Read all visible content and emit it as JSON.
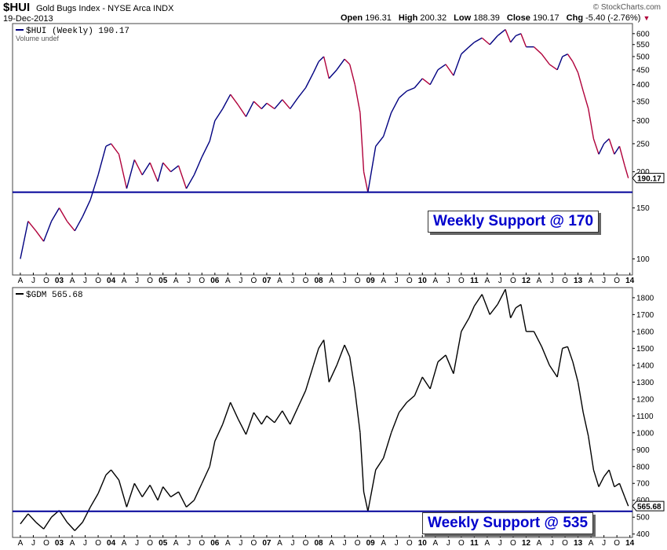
{
  "header": {
    "ticker": "$HUI",
    "index_name": "Gold Bugs Index - NYSE Arca  INDX",
    "date": "19-Dec-2013",
    "open_label": "Open",
    "open": "196.31",
    "high_label": "High",
    "high": "200.32",
    "low_label": "Low",
    "low": "188.39",
    "close_label": "Close",
    "close": "190.17",
    "chg_label": "Chg",
    "chg": "-5.40 (-2.76%)",
    "credit": "© StockCharts.com"
  },
  "colors": {
    "hui_up": "#000080",
    "hui_down": "#b0003a",
    "gdm": "#000000",
    "support": "#000099",
    "box_text": "#0000cc"
  },
  "chart_data": [
    {
      "type": "line",
      "legend": "$HUI (Weekly) 190.17",
      "volume_note": "Volume undef",
      "scale": "log",
      "ylim": [
        88,
        650
      ],
      "y_ticks": [
        "600",
        "550",
        "500",
        "450",
        "400",
        "350",
        "300",
        "250",
        "200",
        "150",
        "100"
      ],
      "last_value_label": "190.17",
      "last_value": 190.17,
      "support_value": 170,
      "annotation": "Weekly Support @ 170",
      "x_labels": [
        "A",
        "J",
        "O",
        "03",
        "A",
        "J",
        "O",
        "04",
        "A",
        "J",
        "O",
        "05",
        "A",
        "J",
        "O",
        "06",
        "A",
        "J",
        "O",
        "07",
        "A",
        "J",
        "O",
        "08",
        "A",
        "J",
        "O",
        "09",
        "A",
        "J",
        "O",
        "10",
        "A",
        "J",
        "O",
        "11",
        "A",
        "J",
        "O",
        "12",
        "A",
        "J",
        "O",
        "13",
        "A",
        "J",
        "O",
        "14"
      ],
      "x": [
        2002.25,
        2002.4,
        2002.55,
        2002.7,
        2002.85,
        2003.0,
        2003.15,
        2003.3,
        2003.45,
        2003.6,
        2003.75,
        2003.9,
        2004.0,
        2004.15,
        2004.3,
        2004.45,
        2004.6,
        2004.75,
        2004.9,
        2005.0,
        2005.15,
        2005.3,
        2005.45,
        2005.6,
        2005.75,
        2005.9,
        2006.0,
        2006.15,
        2006.3,
        2006.45,
        2006.6,
        2006.75,
        2006.9,
        2007.0,
        2007.15,
        2007.3,
        2007.45,
        2007.6,
        2007.75,
        2007.9,
        2008.0,
        2008.1,
        2008.2,
        2008.35,
        2008.5,
        2008.6,
        2008.7,
        2008.8,
        2008.87,
        2008.95,
        2009.1,
        2009.25,
        2009.4,
        2009.55,
        2009.7,
        2009.85,
        2010.0,
        2010.15,
        2010.3,
        2010.45,
        2010.6,
        2010.75,
        2010.9,
        2011.0,
        2011.15,
        2011.3,
        2011.45,
        2011.6,
        2011.7,
        2011.8,
        2011.9,
        2012.0,
        2012.15,
        2012.3,
        2012.45,
        2012.6,
        2012.7,
        2012.8,
        2012.9,
        2013.0,
        2013.1,
        2013.2,
        2013.3,
        2013.4,
        2013.5,
        2013.6,
        2013.7,
        2013.8,
        2013.9,
        2013.97
      ],
      "values": [
        100,
        135,
        125,
        115,
        135,
        150,
        135,
        125,
        140,
        160,
        195,
        245,
        250,
        230,
        175,
        220,
        195,
        215,
        185,
        215,
        200,
        210,
        175,
        195,
        225,
        255,
        300,
        330,
        370,
        340,
        310,
        350,
        330,
        345,
        330,
        355,
        330,
        360,
        390,
        440,
        480,
        500,
        420,
        450,
        490,
        470,
        400,
        320,
        200,
        170,
        245,
        265,
        320,
        360,
        380,
        390,
        420,
        400,
        450,
        470,
        430,
        510,
        540,
        560,
        580,
        550,
        590,
        620,
        560,
        590,
        600,
        540,
        540,
        510,
        470,
        450,
        500,
        510,
        480,
        440,
        380,
        330,
        260,
        230,
        250,
        260,
        230,
        245,
        210,
        190.17
      ]
    },
    {
      "type": "line",
      "legend": "$GDM 565.68",
      "ylim": [
        380,
        1860
      ],
      "y_ticks": [
        "1800",
        "1700",
        "1600",
        "1500",
        "1400",
        "1300",
        "1200",
        "1100",
        "1000",
        "900",
        "800",
        "700",
        "600",
        "500",
        "400"
      ],
      "last_value_label": "565.68",
      "last_value": 565.68,
      "support_value": 535,
      "annotation": "Weekly Support @ 535",
      "x_labels": [
        "A",
        "J",
        "O",
        "03",
        "A",
        "J",
        "O",
        "04",
        "A",
        "J",
        "O",
        "05",
        "A",
        "J",
        "O",
        "06",
        "A",
        "J",
        "O",
        "07",
        "A",
        "J",
        "O",
        "08",
        "A",
        "J",
        "O",
        "09",
        "A",
        "J",
        "O",
        "10",
        "A",
        "J",
        "O",
        "11",
        "A",
        "J",
        "O",
        "12",
        "A",
        "J",
        "O",
        "13",
        "A",
        "J",
        "O",
        "14"
      ],
      "x": [
        2002.25,
        2002.4,
        2002.55,
        2002.7,
        2002.85,
        2003.0,
        2003.15,
        2003.3,
        2003.45,
        2003.6,
        2003.75,
        2003.9,
        2004.0,
        2004.15,
        2004.3,
        2004.45,
        2004.6,
        2004.75,
        2004.9,
        2005.0,
        2005.15,
        2005.3,
        2005.45,
        2005.6,
        2005.75,
        2005.9,
        2006.0,
        2006.15,
        2006.3,
        2006.45,
        2006.6,
        2006.75,
        2006.9,
        2007.0,
        2007.15,
        2007.3,
        2007.45,
        2007.6,
        2007.75,
        2007.9,
        2008.0,
        2008.1,
        2008.2,
        2008.35,
        2008.5,
        2008.6,
        2008.7,
        2008.8,
        2008.87,
        2008.95,
        2009.1,
        2009.25,
        2009.4,
        2009.55,
        2009.7,
        2009.85,
        2010.0,
        2010.15,
        2010.3,
        2010.45,
        2010.6,
        2010.75,
        2010.9,
        2011.0,
        2011.15,
        2011.3,
        2011.45,
        2011.6,
        2011.7,
        2011.8,
        2011.9,
        2012.0,
        2012.15,
        2012.3,
        2012.45,
        2012.6,
        2012.7,
        2012.8,
        2012.9,
        2013.0,
        2013.1,
        2013.2,
        2013.3,
        2013.4,
        2013.5,
        2013.6,
        2013.7,
        2013.8,
        2013.9,
        2013.97
      ],
      "values": [
        460,
        520,
        470,
        430,
        500,
        540,
        470,
        420,
        470,
        560,
        640,
        750,
        780,
        720,
        560,
        700,
        620,
        690,
        600,
        680,
        620,
        650,
        560,
        600,
        700,
        800,
        950,
        1050,
        1180,
        1080,
        990,
        1120,
        1050,
        1100,
        1060,
        1130,
        1050,
        1150,
        1250,
        1400,
        1500,
        1550,
        1300,
        1400,
        1520,
        1450,
        1250,
        1000,
        650,
        535,
        780,
        850,
        1000,
        1120,
        1180,
        1220,
        1330,
        1260,
        1420,
        1460,
        1350,
        1600,
        1680,
        1750,
        1820,
        1700,
        1760,
        1850,
        1680,
        1740,
        1760,
        1600,
        1600,
        1510,
        1400,
        1330,
        1500,
        1510,
        1420,
        1300,
        1120,
        980,
        780,
        680,
        740,
        780,
        680,
        700,
        620,
        565.68
      ]
    }
  ]
}
